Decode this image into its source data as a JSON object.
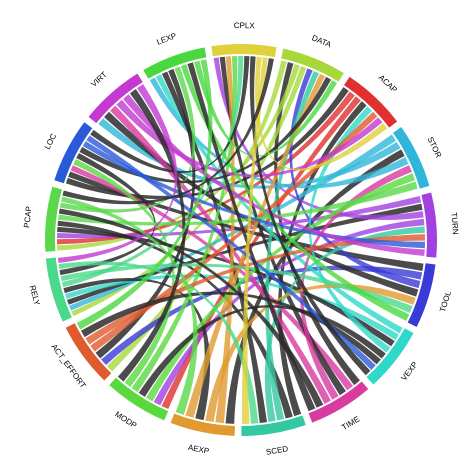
{
  "diagram": {
    "type": "chord",
    "background_color": "#ffffff",
    "link_colors_note": "ribbons take the color of their source segment; many ribbons drawn in dark gray",
    "dark_ribbon_color": "#2b2b2b",
    "segments": [
      {
        "label": "DATA",
        "color": "#a6d83a"
      },
      {
        "label": "ACAP",
        "color": "#e03030"
      },
      {
        "label": "STOR",
        "color": "#2fb6d8"
      },
      {
        "label": "TURN",
        "color": "#a240e0"
      },
      {
        "label": "TOOL",
        "color": "#3a3ad8"
      },
      {
        "label": "VEXP",
        "color": "#2fd8c8"
      },
      {
        "label": "TIME",
        "color": "#d83aa0"
      },
      {
        "label": "SCED",
        "color": "#34c8a0"
      },
      {
        "label": "AEXP",
        "color": "#e09a30"
      },
      {
        "label": "MODP",
        "color": "#5ad840"
      },
      {
        "label": "ACT_EFFORT",
        "color": "#e05a30"
      },
      {
        "label": "RELY",
        "color": "#4ad88a"
      },
      {
        "label": "PCAP",
        "color": "#5ad84a"
      },
      {
        "label": "LOC",
        "color": "#2a5ad8"
      },
      {
        "label": "VIRT",
        "color": "#c23ad0"
      },
      {
        "label": "LEXP",
        "color": "#4ad840"
      },
      {
        "label": "CPLX",
        "color": "#e0d03a"
      }
    ],
    "links": [
      {
        "from": "DATA",
        "to": "RELY"
      },
      {
        "from": "DATA",
        "to": "TIME"
      },
      {
        "from": "DATA",
        "to": "PCAP"
      },
      {
        "from": "DATA",
        "to": "ACT_EFFORT"
      },
      {
        "from": "ACAP",
        "to": "LOC"
      },
      {
        "from": "ACAP",
        "to": "PCAP"
      },
      {
        "from": "ACAP",
        "to": "MODP"
      },
      {
        "from": "ACAP",
        "to": "SCED"
      },
      {
        "from": "STOR",
        "to": "RELY"
      },
      {
        "from": "STOR",
        "to": "VIRT"
      },
      {
        "from": "STOR",
        "to": "AEXP"
      },
      {
        "from": "STOR",
        "to": "LEXP"
      },
      {
        "from": "TURN",
        "to": "PCAP"
      },
      {
        "from": "TURN",
        "to": "RELY"
      },
      {
        "from": "TURN",
        "to": "CPLX"
      },
      {
        "from": "TURN",
        "to": "MODP"
      },
      {
        "from": "TOOL",
        "to": "LOC"
      },
      {
        "from": "TOOL",
        "to": "ACT_EFFORT"
      },
      {
        "from": "TOOL",
        "to": "DATA"
      },
      {
        "from": "TOOL",
        "to": "VIRT"
      },
      {
        "from": "VEXP",
        "to": "LEXP"
      },
      {
        "from": "VEXP",
        "to": "RELY"
      },
      {
        "from": "VEXP",
        "to": "PCAP"
      },
      {
        "from": "VEXP",
        "to": "ACAP"
      },
      {
        "from": "TIME",
        "to": "LOC"
      },
      {
        "from": "TIME",
        "to": "CPLX"
      },
      {
        "from": "TIME",
        "to": "STOR"
      },
      {
        "from": "TIME",
        "to": "VIRT"
      },
      {
        "from": "SCED",
        "to": "PCAP"
      },
      {
        "from": "SCED",
        "to": "DATA"
      },
      {
        "from": "SCED",
        "to": "TURN"
      },
      {
        "from": "SCED",
        "to": "LEXP"
      },
      {
        "from": "AEXP",
        "to": "CPLX"
      },
      {
        "from": "AEXP",
        "to": "TOOL"
      },
      {
        "from": "AEXP",
        "to": "RELY"
      },
      {
        "from": "AEXP",
        "to": "DATA"
      },
      {
        "from": "MODP",
        "to": "STOR"
      },
      {
        "from": "MODP",
        "to": "VEXP"
      },
      {
        "from": "MODP",
        "to": "CPLX"
      },
      {
        "from": "MODP",
        "to": "LOC"
      },
      {
        "from": "ACT_EFFORT",
        "to": "LEXP"
      },
      {
        "from": "ACT_EFFORT",
        "to": "ACAP"
      },
      {
        "from": "ACT_EFFORT",
        "to": "TURN"
      },
      {
        "from": "ACT_EFFORT",
        "to": "VEXP"
      },
      {
        "from": "RELY",
        "to": "CPLX"
      },
      {
        "from": "RELY",
        "to": "TOOL"
      },
      {
        "from": "RELY",
        "to": "LOC"
      },
      {
        "from": "RELY",
        "to": "SCED"
      },
      {
        "from": "PCAP",
        "to": "STOR"
      },
      {
        "from": "PCAP",
        "to": "TIME"
      },
      {
        "from": "PCAP",
        "to": "LEXP"
      },
      {
        "from": "PCAP",
        "to": "AEXP"
      },
      {
        "from": "LOC",
        "to": "DATA"
      },
      {
        "from": "LOC",
        "to": "TURN"
      },
      {
        "from": "LOC",
        "to": "VEXP"
      },
      {
        "from": "LOC",
        "to": "CPLX"
      },
      {
        "from": "VIRT",
        "to": "ACAP"
      },
      {
        "from": "VIRT",
        "to": "TURN"
      },
      {
        "from": "VIRT",
        "to": "MODP"
      },
      {
        "from": "VIRT",
        "to": "RELY"
      },
      {
        "from": "LEXP",
        "to": "TOOL"
      },
      {
        "from": "LEXP",
        "to": "TIME"
      },
      {
        "from": "LEXP",
        "to": "DATA"
      },
      {
        "from": "LEXP",
        "to": "ACT_EFFORT"
      },
      {
        "from": "CPLX",
        "to": "VEXP"
      },
      {
        "from": "CPLX",
        "to": "ACAP"
      },
      {
        "from": "CPLX",
        "to": "SCED"
      },
      {
        "from": "CPLX",
        "to": "PCAP"
      }
    ]
  }
}
